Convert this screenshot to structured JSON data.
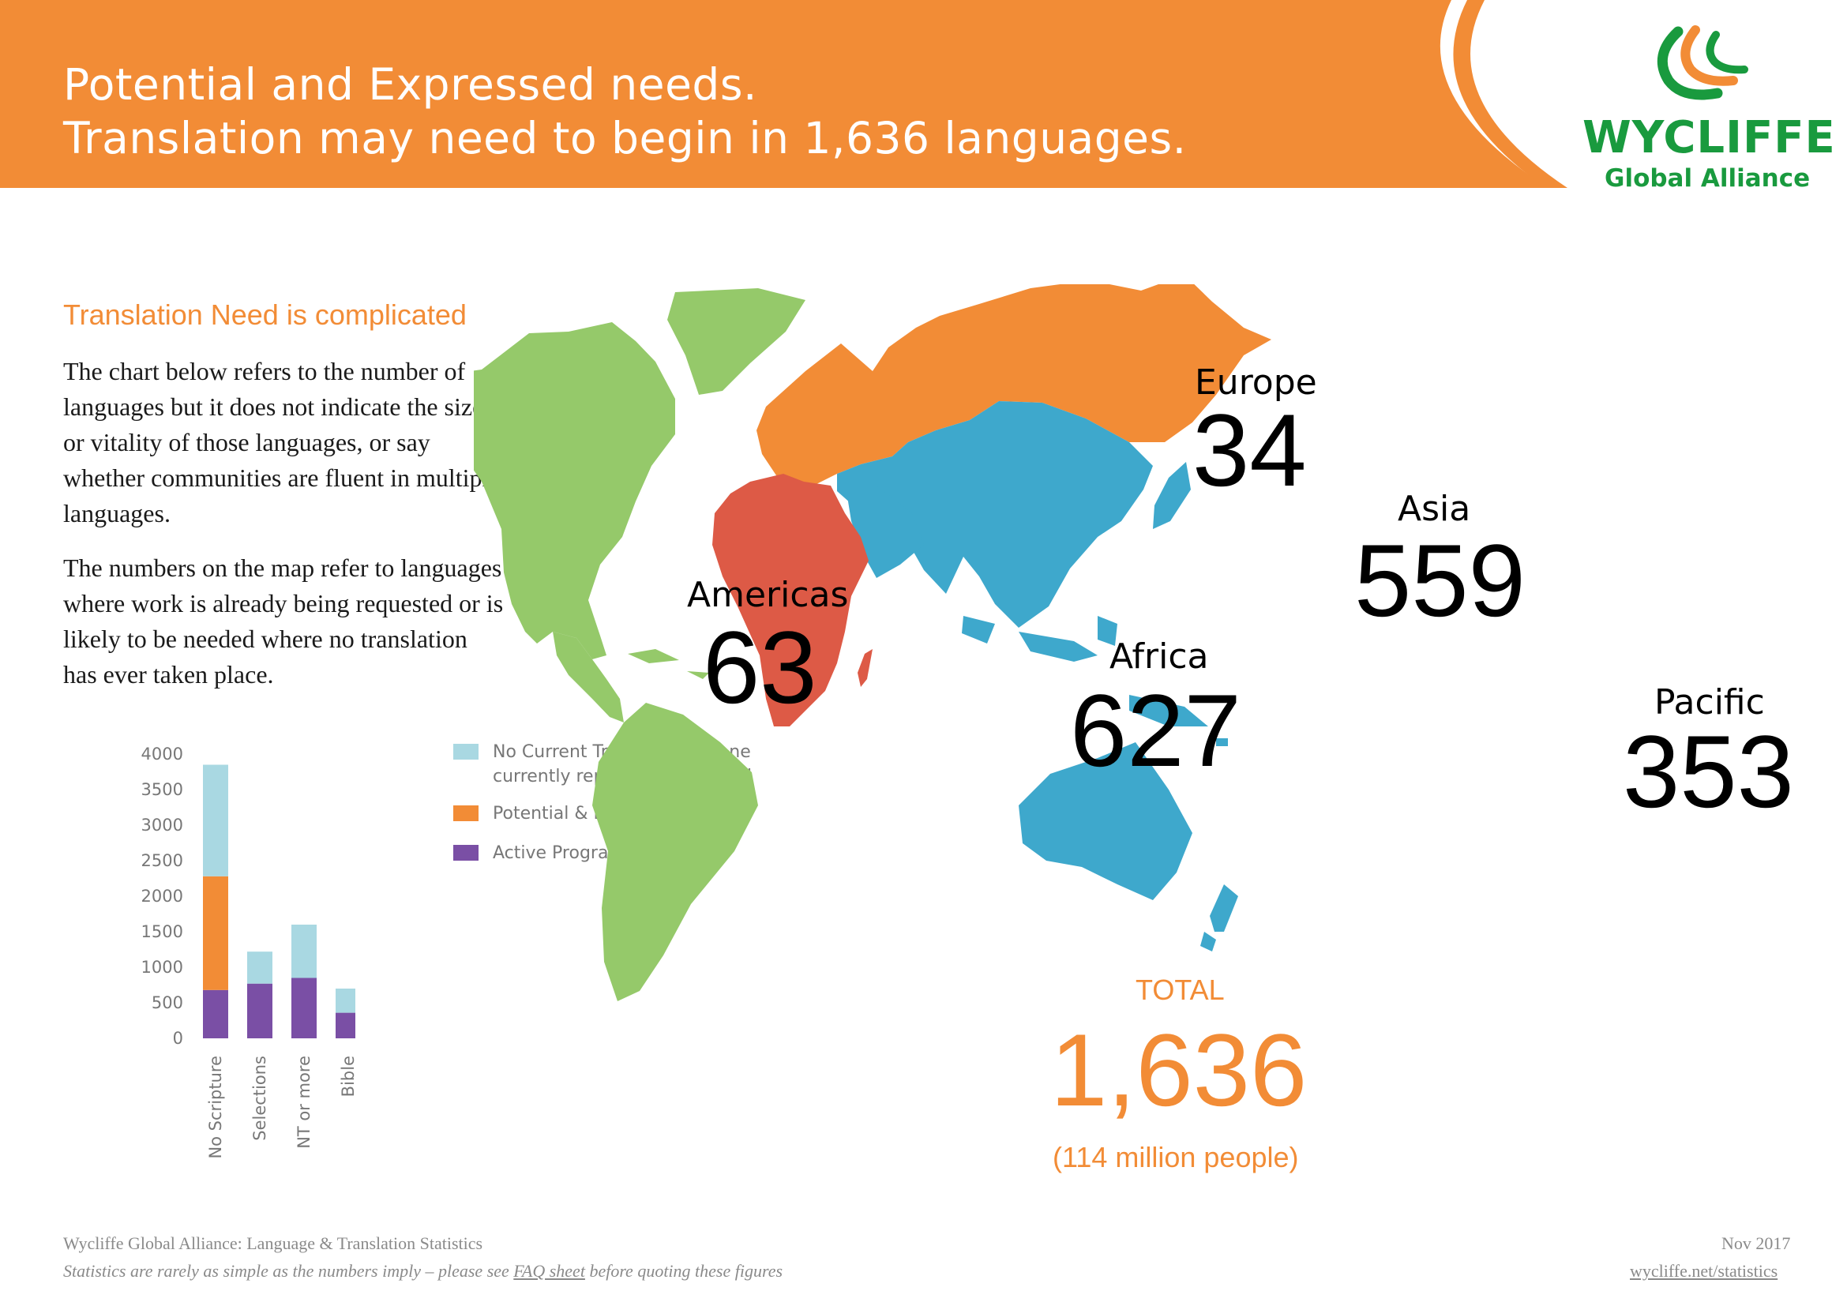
{
  "header": {
    "title_line1": "Potential and Expressed needs.",
    "title_line2": "Translation may need to begin in 1,636 languages.",
    "bg_color": "#f28c36"
  },
  "logo": {
    "name": "WYCLIFFE",
    "tagline": "Global Alliance",
    "icon": "wycliffe-swoosh-logo",
    "color": "#199a3e",
    "accent_color": "#f28c36"
  },
  "intro": {
    "heading": "Translation Need is complicated",
    "paragraph1": "The chart below refers to the number of languages but it does not indicate the size, or vitality of those languages, or say whether communities are fluent in multiple languages.",
    "paragraph2": "The numbers on the map refer to languages where work is already being requested or is likely to be needed where no translation has ever taken place."
  },
  "map": {
    "regions": [
      {
        "name": "Americas",
        "value": "63",
        "color": "#95c96a"
      },
      {
        "name": "Europe",
        "value": "34",
        "color": "#f28c36"
      },
      {
        "name": "Asia",
        "value": "559",
        "color": "#3ea8cc"
      },
      {
        "name": "Africa",
        "value": "627",
        "color": "#dd5a46"
      },
      {
        "name": "Pacific",
        "value": "353",
        "color": "#3ea8cc"
      }
    ],
    "total_label": "TOTAL",
    "total_value": "1,636",
    "total_people": "(114 million people)"
  },
  "chart_data": {
    "type": "bar",
    "stacked": true,
    "categories": [
      "No Scripture",
      "Selections",
      "NT or more",
      "Bible"
    ],
    "series": [
      {
        "name": "Active Program",
        "values": [
          680,
          770,
          850,
          360
        ],
        "color": "#7a4fa5"
      },
      {
        "name": "Potential & Expressed Need",
        "values": [
          1600,
          0,
          0,
          0
        ],
        "color": "#f28c36"
      },
      {
        "name": "No Current Translations, none currently reported as planned",
        "values": [
          1570,
          450,
          750,
          340
        ],
        "color": "#a9d8e2"
      }
    ],
    "legend_order": [
      "No Current Translations, none currently reported as planned",
      "Potential & Expressed Need",
      "Active Program"
    ],
    "legend_lines": [
      [
        "No Current Translations, none",
        "currently reported as planned"
      ],
      [
        "Potential & Expressed Need"
      ],
      [
        "Active Program"
      ]
    ],
    "yticks": [
      "4000",
      "3500",
      "3000",
      "2500",
      "2000",
      "1500",
      "1000",
      "500",
      "0"
    ],
    "ylim": [
      0,
      4000
    ],
    "grid": false,
    "legend_position": "right"
  },
  "footer": {
    "line1": "Wycliffe Global Alliance: Language & Translation Statistics",
    "line2_before": "Statistics are rarely as simple as the numbers imply – please see",
    "line2_link": "FAQ sheet",
    "line2_after": "before quoting these figures",
    "date": "Nov 2017",
    "url": "wycliffe.net/statistics"
  }
}
